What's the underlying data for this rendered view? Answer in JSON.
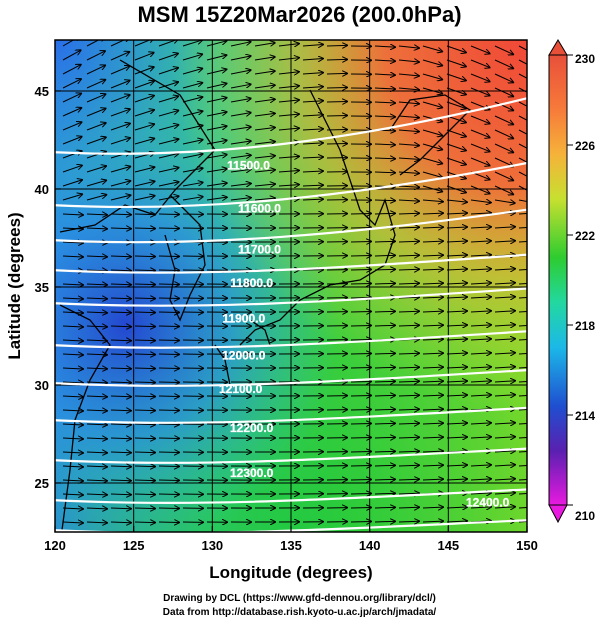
{
  "title": "MSM 15Z20Mar2026 (200.0hPa)",
  "axes": {
    "xlabel": "Longitude (degrees)",
    "ylabel": "Latitude  (degrees)",
    "xticks": [
      120,
      125,
      130,
      135,
      140,
      145,
      150
    ],
    "yticks": [
      25,
      30,
      35,
      40,
      45
    ],
    "xlim": [
      120,
      150
    ],
    "ylim": [
      22.5,
      47.6
    ]
  },
  "colorbar": {
    "labels": [
      "230",
      "226",
      "222",
      "218",
      "214",
      "210"
    ],
    "min": 210,
    "max": 230
  },
  "contours": {
    "labels": [
      {
        "text": "11500.0",
        "lon": 132.3,
        "lat": 41.0
      },
      {
        "text": "11600.0",
        "lon": 133.0,
        "lat": 38.8
      },
      {
        "text": "11700.0",
        "lon": 133.0,
        "lat": 36.7
      },
      {
        "text": "11800.0",
        "lon": 132.5,
        "lat": 35.0
      },
      {
        "text": "11900.0",
        "lon": 132.0,
        "lat": 33.2
      },
      {
        "text": "12000.0",
        "lon": 132.0,
        "lat": 31.3
      },
      {
        "text": "12100.0",
        "lon": 131.8,
        "lat": 29.6
      },
      {
        "text": "12200.0",
        "lon": 132.5,
        "lat": 27.6
      },
      {
        "text": "12300.0",
        "lon": 132.5,
        "lat": 25.3
      },
      {
        "text": "12400.0",
        "lon": 147.5,
        "lat": 23.8
      }
    ]
  },
  "credits": {
    "line1": "Drawing by DCL (https://www.gfd-dennou.org/library/dcl/)",
    "line2": "Data from http://database.rish.kyoto-u.ac.jp/arch/jmadata/"
  }
}
